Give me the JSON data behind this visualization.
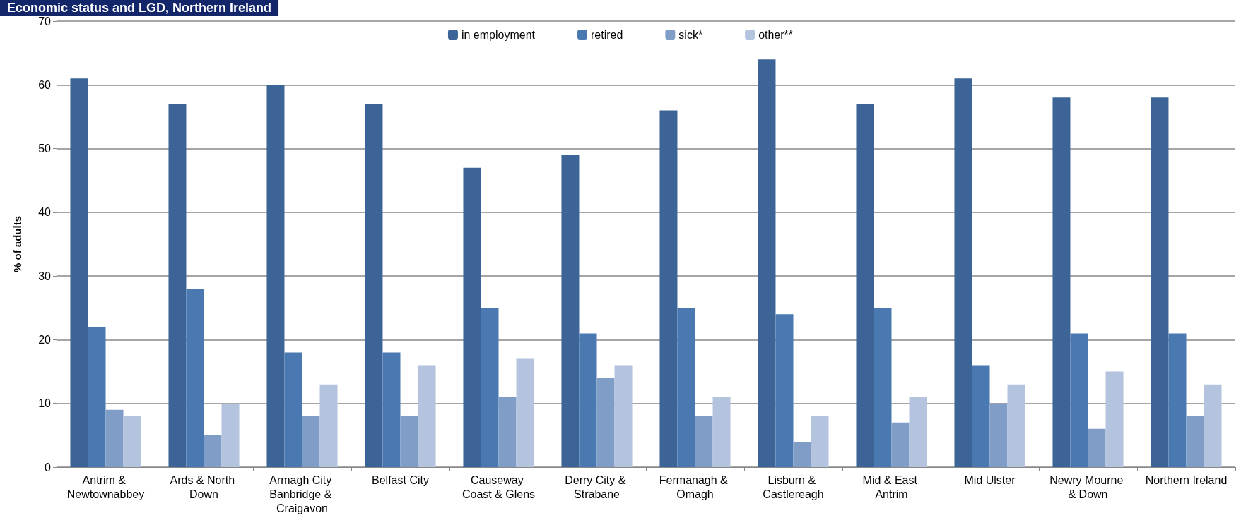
{
  "chart_data": {
    "type": "bar",
    "title": "Economic status and LGD, Northern Ireland",
    "ylabel": "% of adults",
    "categories": [
      "Antrim & Newtownabbey",
      "Ards & North Down",
      "Armagh City Banbridge & Craigavon",
      "Belfast City",
      "Causeway Coast & Glens",
      "Derry City & Strabane",
      "Fermanagh & Omagh",
      "Lisburn & Castlereagh",
      "Mid & East Antrim",
      "Mid Ulster",
      "Newry Mourne & Down",
      "Northern Ireland"
    ],
    "series": [
      {
        "name": "in employment",
        "color": "#3c6496",
        "values": [
          61,
          57,
          60,
          57,
          47,
          49,
          56,
          64,
          57,
          61,
          58,
          58
        ]
      },
      {
        "name": "retired",
        "color": "#4a78b0",
        "values": [
          22,
          28,
          18,
          18,
          25,
          21,
          25,
          24,
          25,
          16,
          21,
          21
        ]
      },
      {
        "name": "sick*",
        "color": "#809dc8",
        "values": [
          9,
          5,
          8,
          8,
          11,
          14,
          8,
          4,
          7,
          10,
          6,
          8
        ]
      },
      {
        "name": "other**",
        "color": "#b4c3de",
        "values": [
          8,
          10,
          13,
          16,
          17,
          16,
          11,
          8,
          11,
          13,
          15,
          13
        ]
      }
    ],
    "ylim": [
      0,
      70
    ],
    "yticks": [
      0,
      10,
      20,
      30,
      40,
      50,
      60,
      70
    ],
    "grid": "y",
    "legend": "top"
  }
}
